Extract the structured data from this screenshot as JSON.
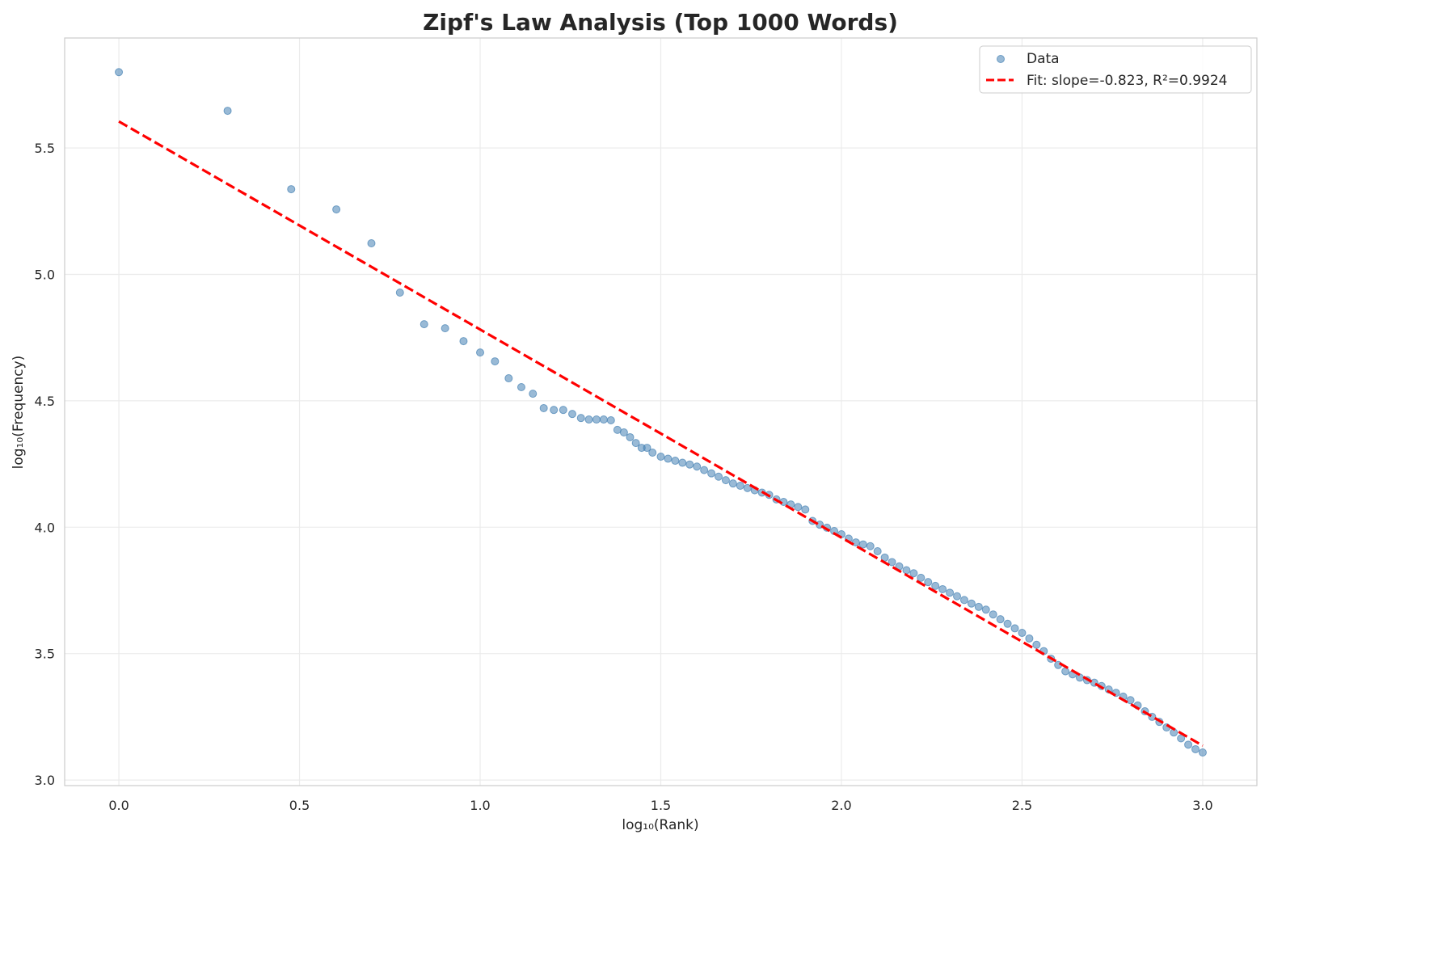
{
  "chart_data": {
    "type": "scatter",
    "title": "Zipf's Law Analysis (Top 1000 Words)",
    "xlabel": "log₁₀(Rank)",
    "ylabel": "log₁₀(Frequency)",
    "xlim": [
      -0.15,
      3.15
    ],
    "ylim": [
      2.978,
      5.935
    ],
    "x_ticks": [
      0.0,
      0.5,
      1.0,
      1.5,
      2.0,
      2.5,
      3.0
    ],
    "x_tick_labels": [
      "0.0",
      "0.5",
      "1.0",
      "1.5",
      "2.0",
      "2.5",
      "3.0"
    ],
    "y_ticks": [
      3.0,
      3.5,
      4.0,
      4.5,
      5.0,
      5.5
    ],
    "y_tick_labels": [
      "3.0",
      "3.5",
      "4.0",
      "4.5",
      "5.0",
      "5.5"
    ],
    "grid": true,
    "legend_position": "top-right",
    "colors": {
      "data": "#4682b4",
      "fit": "#ff0000"
    },
    "series": [
      {
        "name": "Data",
        "kind": "scatter",
        "x": [
          0.0,
          0.301,
          0.477,
          0.602,
          0.699,
          0.778,
          0.845,
          0.903,
          0.954,
          1.0,
          1.041,
          1.079,
          1.114,
          1.146,
          1.176,
          1.204,
          1.23,
          1.255,
          1.279,
          1.301,
          1.322,
          1.342,
          1.362,
          1.38,
          1.398,
          1.415,
          1.431,
          1.447,
          1.462,
          1.477,
          1.5,
          1.52,
          1.54,
          1.56,
          1.58,
          1.6,
          1.62,
          1.64,
          1.66,
          1.68,
          1.7,
          1.72,
          1.74,
          1.76,
          1.78,
          1.8,
          1.82,
          1.84,
          1.86,
          1.88,
          1.9,
          1.92,
          1.94,
          1.96,
          1.98,
          2.0,
          2.02,
          2.04,
          2.06,
          2.08,
          2.1,
          2.12,
          2.14,
          2.16,
          2.18,
          2.2,
          2.22,
          2.24,
          2.26,
          2.28,
          2.3,
          2.32,
          2.34,
          2.36,
          2.38,
          2.4,
          2.42,
          2.44,
          2.46,
          2.48,
          2.5,
          2.52,
          2.54,
          2.56,
          2.58,
          2.6,
          2.62,
          2.64,
          2.66,
          2.68,
          2.7,
          2.72,
          2.74,
          2.76,
          2.78,
          2.8,
          2.82,
          2.84,
          2.86,
          2.88,
          2.9,
          2.92,
          2.94,
          2.96,
          2.98,
          3.0
        ],
        "y": [
          5.8,
          5.647,
          5.337,
          5.257,
          5.123,
          4.928,
          4.803,
          4.787,
          4.736,
          4.691,
          4.656,
          4.589,
          4.554,
          4.528,
          4.471,
          4.464,
          4.464,
          4.448,
          4.432,
          4.426,
          4.426,
          4.426,
          4.423,
          4.385,
          4.375,
          4.356,
          4.333,
          4.314,
          4.314,
          4.295,
          4.279,
          4.271,
          4.263,
          4.255,
          4.248,
          4.24,
          4.226,
          4.213,
          4.2,
          4.186,
          4.173,
          4.164,
          4.155,
          4.146,
          4.137,
          4.128,
          4.11,
          4.1,
          4.09,
          4.08,
          4.07,
          4.025,
          4.01,
          3.998,
          3.985,
          3.972,
          3.955,
          3.94,
          3.932,
          3.925,
          3.905,
          3.88,
          3.862,
          3.845,
          3.83,
          3.818,
          3.8,
          3.783,
          3.768,
          3.755,
          3.741,
          3.727,
          3.712,
          3.698,
          3.685,
          3.674,
          3.655,
          3.636,
          3.618,
          3.6,
          3.582,
          3.56,
          3.535,
          3.51,
          3.48,
          3.455,
          3.43,
          3.418,
          3.405,
          3.395,
          3.385,
          3.372,
          3.358,
          3.345,
          3.33,
          3.316,
          3.295,
          3.272,
          3.25,
          3.23,
          3.208,
          3.188,
          3.165,
          3.14,
          3.122,
          3.109
        ]
      },
      {
        "name": "Fit: slope=-0.823, R²=0.9924",
        "kind": "line",
        "style": "dashed",
        "slope": -0.823,
        "r_squared": 0.9924,
        "x": [
          0.0,
          3.0
        ],
        "y": [
          5.605,
          3.136
        ]
      }
    ]
  }
}
